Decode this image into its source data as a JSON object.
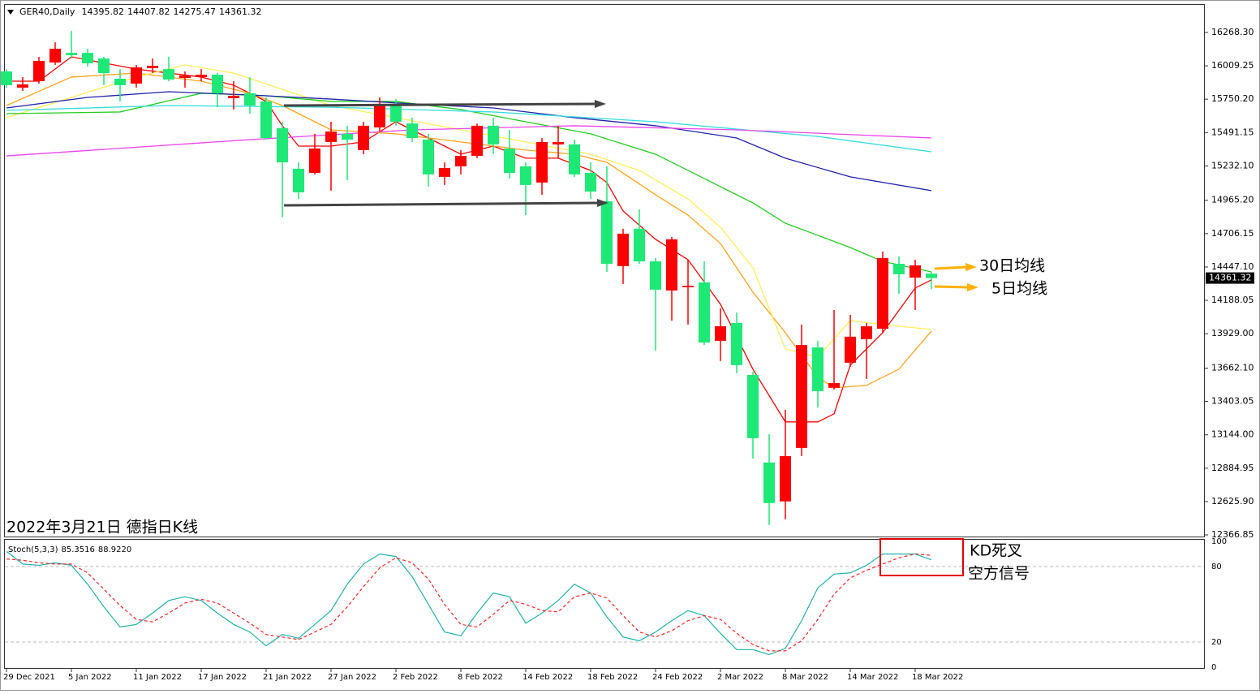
{
  "chart_data": [
    {
      "type": "candlestick",
      "title": "GER40,Daily",
      "categories": [
        "29 Dec 2021",
        null,
        null,
        null,
        "5 Jan 2022",
        null,
        null,
        null,
        "11 Jan 2022",
        null,
        null,
        null,
        "17 Jan 2022",
        null,
        null,
        null,
        "21 Jan 2022",
        null,
        null,
        null,
        "27 Jan 2022",
        null,
        null,
        null,
        "2 Feb 2022",
        null,
        null,
        null,
        "8 Feb 2022",
        null,
        null,
        null,
        "14 Feb 2022",
        null,
        null,
        null,
        "18 Feb 2022",
        null,
        null,
        null,
        "24 Feb 2022",
        null,
        null,
        null,
        "2 Mar 2022",
        null,
        null,
        null,
        "8 Mar 2022",
        null,
        null,
        null,
        "14 Mar 2022",
        null,
        null,
        null,
        "18 Mar 2022",
        null
      ],
      "open": [
        15966,
        15840,
        15890,
        16035,
        16110,
        16110,
        16066,
        15909,
        15871,
        15991,
        15984,
        15915,
        15922,
        15940,
        15758,
        15796,
        15733,
        15525,
        15210,
        15178,
        15418,
        15481,
        15355,
        15531,
        15714,
        15562,
        15436,
        15147,
        15229,
        15310,
        15544,
        15367,
        15229,
        15103,
        15399,
        15399,
        15178,
        14958,
        14454,
        14744,
        14491,
        14265,
        14290,
        14328,
        13874,
        14012,
        13609,
        12929,
        12627,
        13042,
        13823,
        13509,
        13704,
        13887,
        13968,
        14472,
        14365,
        14395.82
      ],
      "high": [
        15984,
        15922,
        16079,
        16192,
        16281,
        16142,
        16079,
        15984,
        16016,
        16066,
        16079,
        15966,
        15984,
        15953,
        15890,
        15922,
        15764,
        15575,
        15260,
        15481,
        15575,
        15544,
        15575,
        15764,
        15751,
        15607,
        15481,
        15260,
        15355,
        15562,
        15607,
        15512,
        15260,
        15449,
        15544,
        15436,
        15260,
        15229,
        14744,
        14895,
        14517,
        14680,
        14504,
        14491,
        14126,
        14094,
        13635,
        13150,
        13339,
        14000,
        13874,
        14113,
        14075,
        14012,
        14567,
        14529,
        14504,
        14407.82
      ],
      "low": [
        15840,
        15814,
        15871,
        16016,
        16066,
        16003,
        15859,
        15733,
        15840,
        15953,
        15890,
        15840,
        15890,
        15688,
        15670,
        15638,
        15436,
        14832,
        14976,
        15166,
        15040,
        15121,
        15323,
        15499,
        15544,
        15418,
        15071,
        15084,
        15166,
        15292,
        15323,
        15134,
        14850,
        15008,
        15292,
        15147,
        14976,
        14409,
        14315,
        14472,
        13798,
        14031,
        14000,
        13842,
        13717,
        13622,
        12960,
        12444,
        12488,
        12979,
        13357,
        13496,
        13672,
        13578,
        13937,
        14239,
        14113,
        14275.47
      ],
      "close": [
        15859,
        15865,
        16048,
        16142,
        16092,
        16029,
        15953,
        15859,
        15997,
        16010,
        15903,
        15934,
        15940,
        15796,
        15777,
        15701,
        15449,
        15260,
        15027,
        15367,
        15499,
        15436,
        15544,
        15714,
        15575,
        15449,
        15166,
        15216,
        15310,
        15544,
        15399,
        15178,
        15084,
        15418,
        15418,
        15166,
        15033,
        14472,
        14706,
        14491,
        14271,
        14662,
        14302,
        13861,
        13987,
        13685,
        13118,
        12614,
        12979,
        13842,
        13483,
        13546,
        13906,
        13987,
        14517,
        14391,
        14460,
        14361.32
      ],
      "up_color": "#ff0000",
      "down_color": "#1ee876",
      "ylim": [
        12366.85,
        16268.3
      ],
      "yticks": [
        {
          "value": 16268.3,
          "label": "16268.30"
        },
        {
          "value": 16009.25,
          "label": "16009.25"
        },
        {
          "value": 15750.2,
          "label": "15750.20"
        },
        {
          "value": 15491.15,
          "label": "15491.15"
        },
        {
          "value": 15232.1,
          "label": "15232.10"
        },
        {
          "value": 14965.2,
          "label": "14965.20"
        },
        {
          "value": 14706.15,
          "label": "14706.15"
        },
        {
          "value": 14447.1,
          "label": "14447.10"
        },
        {
          "value": 14188.05,
          "label": "14188.05"
        },
        {
          "value": 13929.0,
          "label": "13929.00"
        },
        {
          "value": 13662.1,
          "label": "13662.10"
        },
        {
          "value": 13403.05,
          "label": "13403.05"
        },
        {
          "value": 13144.0,
          "label": "13144.00"
        },
        {
          "value": 12884.95,
          "label": "12884.95"
        },
        {
          "value": 12625.9,
          "label": "12625.90"
        },
        {
          "value": 12366.85,
          "label": "12366.85"
        }
      ],
      "series": [
        {
          "color": "#ff0000",
          "x": [
            0,
            2,
            4,
            8,
            12,
            14,
            16,
            17,
            18,
            20,
            22,
            24,
            26,
            28,
            30,
            32,
            34,
            36,
            37,
            38,
            40,
            42,
            44,
            46,
            48,
            50,
            51,
            52,
            54,
            56,
            57
          ],
          "values": [
            15890,
            15890,
            16079,
            15984,
            15922,
            15859,
            15733,
            15544,
            15386,
            15386,
            15418,
            15575,
            15449,
            15323,
            15386,
            15292,
            15292,
            15197,
            15103,
            14882,
            14662,
            14504,
            14158,
            13654,
            13244,
            13244,
            13307,
            13685,
            13937,
            14284,
            14347
          ]
        },
        {
          "color": "#ffa31a",
          "x": [
            0,
            4,
            8,
            12,
            15,
            17,
            20,
            24,
            28,
            32,
            35,
            37,
            40,
            42,
            44,
            46,
            48,
            50,
            51,
            53,
            55,
            57
          ],
          "values": [
            15701,
            15922,
            15953,
            15890,
            15796,
            15701,
            15512,
            15481,
            15418,
            15355,
            15323,
            15260,
            15008,
            14850,
            14630,
            14252,
            13937,
            13591,
            13509,
            13528,
            13654,
            13950
          ]
        },
        {
          "color": "#ffee55",
          "x": [
            0,
            4,
            8,
            11,
            14,
            17,
            20,
            24,
            28,
            32,
            36,
            39,
            42,
            44,
            46,
            48,
            50,
            52,
            54,
            57
          ],
          "values": [
            15607,
            15764,
            15922,
            16016,
            15953,
            15827,
            15701,
            15607,
            15512,
            15418,
            15323,
            15197,
            14976,
            14756,
            14441,
            13811,
            13748,
            14031,
            14000,
            13962
          ]
        },
        {
          "color": "#22cc22",
          "x": [
            0,
            7,
            12,
            16,
            20,
            24,
            28,
            32,
            36,
            40,
            42,
            44,
            46,
            48,
            50,
            52,
            54,
            57
          ],
          "values": [
            15638,
            15651,
            15796,
            15777,
            15733,
            15733,
            15670,
            15575,
            15481,
            15323,
            15197,
            15071,
            14945,
            14787,
            14693,
            14598,
            14491,
            14409
          ]
        },
        {
          "color": "#2222aa",
          "x": [
            0,
            5,
            10,
            15,
            20,
            25,
            30,
            35,
            40,
            45,
            48,
            52,
            57
          ],
          "values": [
            15682,
            15764,
            15808,
            15783,
            15751,
            15714,
            15682,
            15607,
            15544,
            15449,
            15292,
            15147,
            15040
          ]
        },
        {
          "color": "#33dddd",
          "x": [
            0,
            10,
            20,
            30,
            40,
            50,
            57
          ],
          "values": [
            15663,
            15701,
            15688,
            15651,
            15575,
            15461,
            15342
          ]
        },
        {
          "color": "#ee44ee",
          "x": [
            0,
            15,
            25,
            35,
            45,
            57
          ],
          "values": [
            15310,
            15436,
            15512,
            15544,
            15512,
            15449
          ]
        }
      ],
      "annotations": [
        "2022年3月21日 德指日K线",
        "30日均线",
        "5日均线"
      ]
    },
    {
      "type": "line",
      "title": "Stoch(5,3,3)",
      "ylim": [
        0,
        100
      ],
      "yticks": [
        0,
        20,
        80,
        100
      ],
      "series": [
        {
          "color": "#20b2aa",
          "values": [
            92,
            82,
            81,
            83,
            81,
            66,
            48,
            32,
            34,
            43,
            53,
            56,
            53,
            43,
            34,
            28,
            17,
            26,
            23,
            34,
            45,
            66,
            82,
            90,
            88,
            72,
            50,
            28,
            25,
            43,
            59,
            56,
            35,
            43,
            53,
            66,
            59,
            40,
            24,
            21,
            28,
            37,
            45,
            41,
            27,
            14,
            14,
            10,
            15,
            37,
            63,
            74,
            75,
            81,
            90,
            90,
            90,
            85.3516
          ]
        },
        {
          "color": "#ff2222",
          "dash": true,
          "values": [
            86,
            85,
            83,
            82,
            82,
            75,
            62,
            49,
            38,
            36,
            43,
            51,
            54,
            51,
            43,
            35,
            26,
            24,
            22,
            28,
            34,
            48,
            64,
            79,
            87,
            83,
            70,
            50,
            34,
            32,
            42,
            53,
            50,
            45,
            44,
            56,
            59,
            55,
            41,
            28,
            24,
            29,
            37,
            41,
            38,
            27,
            18,
            13,
            13,
            21,
            38,
            58,
            71,
            77,
            82,
            87,
            90,
            88.922
          ],
          "value_labels": [
            null,
            null,
            null,
            null,
            null,
            null,
            null,
            null,
            null,
            null,
            null,
            null,
            null,
            null,
            null,
            null,
            null,
            null,
            null,
            null,
            null,
            null,
            null,
            null,
            null,
            null,
            null,
            null,
            null,
            null,
            null,
            null,
            null,
            null,
            null,
            null,
            null,
            null,
            null,
            null,
            null,
            null,
            null,
            null,
            null,
            null,
            null,
            null,
            null,
            null,
            null,
            null,
            null,
            null,
            null,
            null,
            null,
            "88.9220"
          ]
        }
      ],
      "annotations": [
        "KD死叉",
        "空方信号"
      ]
    }
  ]
}
